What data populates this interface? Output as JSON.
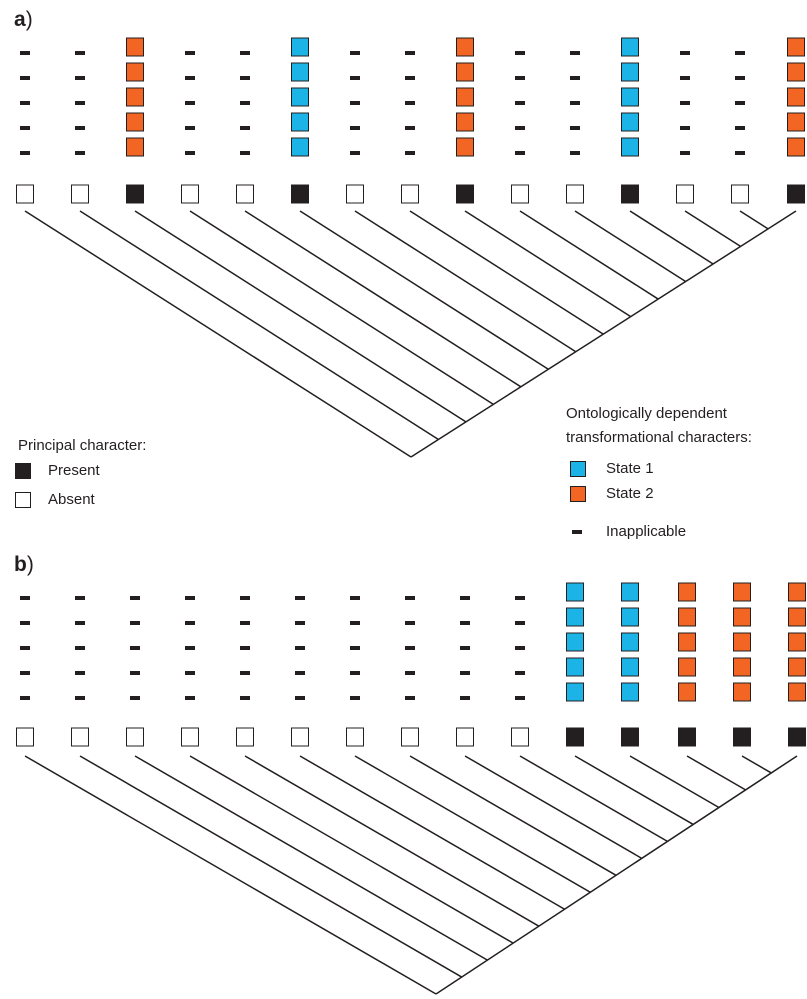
{
  "panels": [
    {
      "label": "a",
      "label_suffix": ")"
    },
    {
      "label": "b",
      "label_suffix": ")"
    }
  ],
  "legend": {
    "principal": {
      "title": "Principal character:",
      "items": [
        "Present",
        "Absent"
      ]
    },
    "dependent": {
      "title": [
        "Ontologically dependent",
        "transformational characters:"
      ],
      "items": [
        "State 1",
        "State 2",
        "Inapplicable"
      ]
    }
  }
}
